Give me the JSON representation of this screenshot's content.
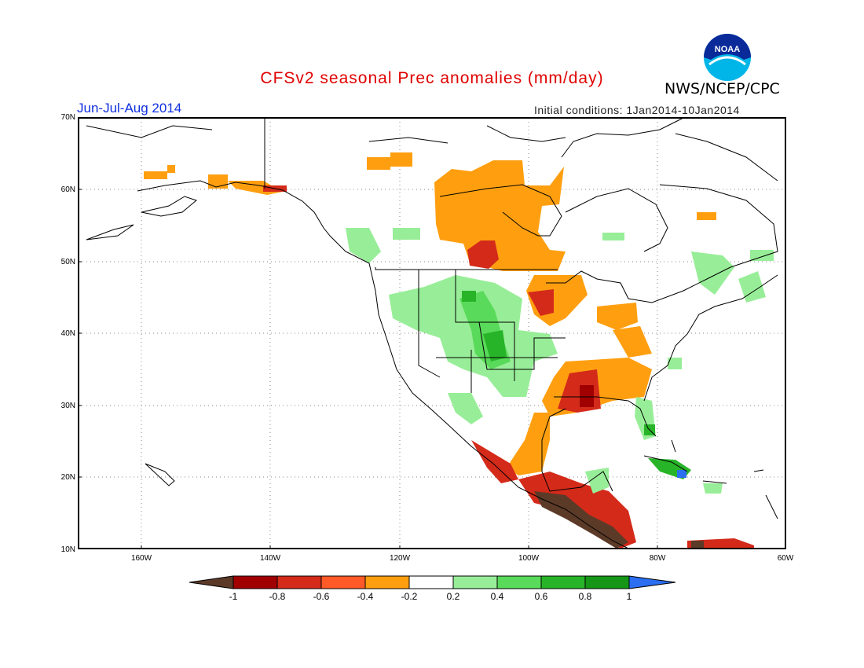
{
  "header": {
    "title": "CFSv2 seasonal Prec anomalies (mm/day)",
    "agency": "NWS/NCEP/CPC",
    "season": "Jun-Jul-Aug 2014",
    "initial_conditions": "Initial conditions: 1Jan2014-10Jan2014",
    "logo_text": "NOAA"
  },
  "axes": {
    "lat_labels": [
      "70N",
      "60N",
      "50N",
      "40N",
      "30N",
      "20N",
      "10N"
    ],
    "lon_labels": [
      "160W",
      "140W",
      "120W",
      "100W",
      "80W",
      "60W"
    ]
  },
  "colorbar": {
    "labels": [
      "-1",
      "-0.8",
      "-0.6",
      "-0.4",
      "-0.2",
      "0.2",
      "0.4",
      "0.6",
      "0.8",
      "1"
    ],
    "colors": [
      "#5c3a28",
      "#a00000",
      "#d42a1a",
      "#ff5a28",
      "#ff9f10",
      "#ffffff",
      "#98ee98",
      "#5ada5a",
      "#28b428",
      "#169616",
      "#2b6ef0"
    ]
  }
}
